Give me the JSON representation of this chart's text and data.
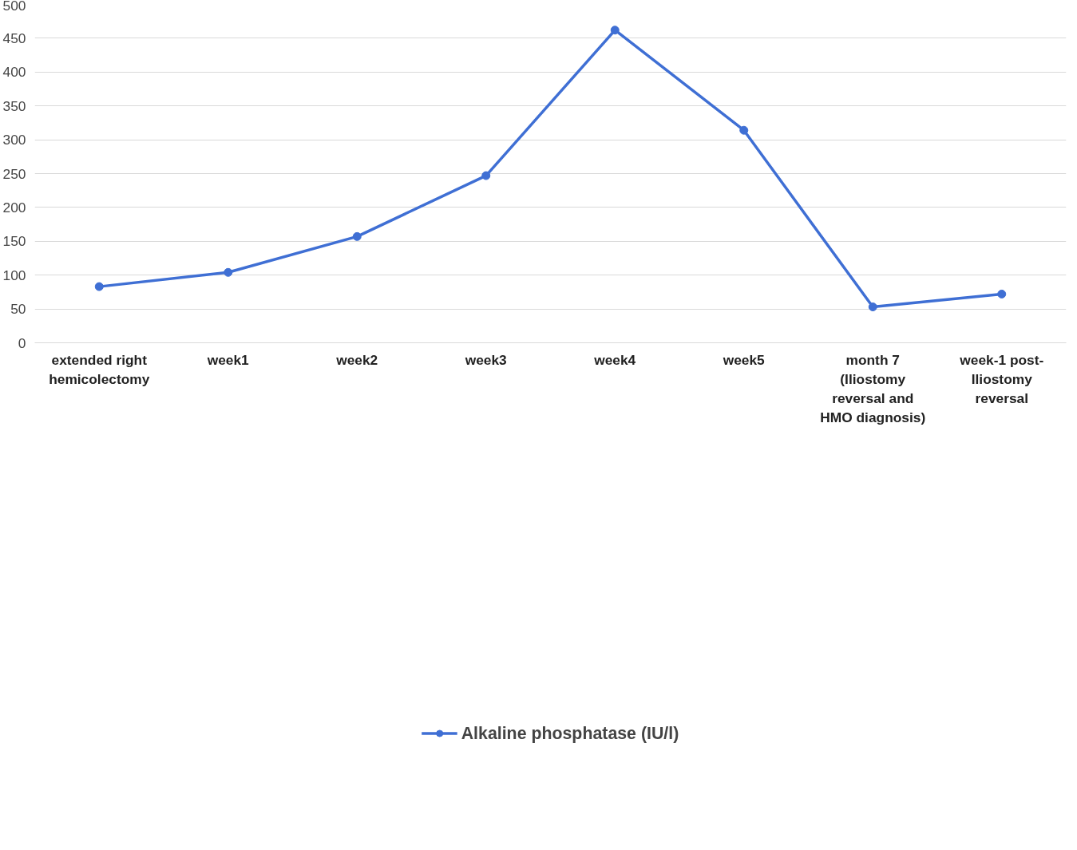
{
  "chart_data": {
    "type": "line",
    "categories": [
      "extended right hemicolectomy",
      "week1",
      "week2",
      "week3",
      "week4",
      "week5",
      "month 7 (Iliostomy reversal and HMO diagnosis)",
      "week-1 post-Iliostomy reversal"
    ],
    "series": [
      {
        "name": "Alkaline phosphatase (IU/l)",
        "color": "#3f6fd4",
        "values": [
          83,
          104,
          157,
          247,
          462,
          314,
          53,
          72
        ]
      }
    ],
    "ylim": [
      0,
      500
    ],
    "yticks": [
      0,
      50,
      100,
      150,
      200,
      250,
      300,
      350,
      400,
      450,
      500
    ],
    "grid": "y",
    "legend": "bottom",
    "marker": "circle",
    "line_style": "solid"
  }
}
